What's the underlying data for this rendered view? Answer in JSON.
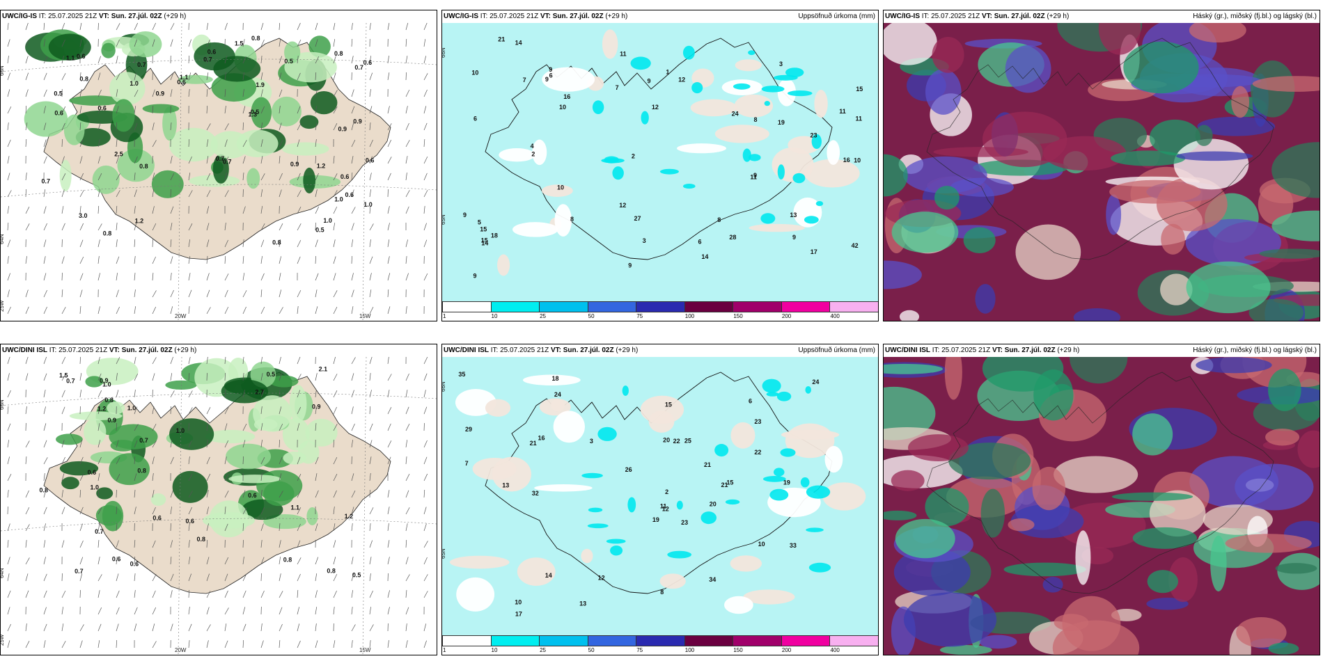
{
  "panels": [
    {
      "model": "UWC/IG-IS",
      "it": "IT: 25.07.2025 21Z",
      "vt_label": "VT:",
      "vt": "Sun. 27.júl. 02Z",
      "lead": "(+29 h)",
      "right": "",
      "type": "cloud"
    },
    {
      "model": "UWC/IG-IS",
      "it": "IT: 25.07.2025 21Z",
      "vt_label": "VT:",
      "vt": "Sun. 27.júl. 02Z",
      "lead": "(+29 h)",
      "right": "Uppsöfnuð úrkoma (mm)",
      "type": "precip"
    },
    {
      "model": "UWC/IG-IS",
      "it": "IT: 25.07.2025 21Z",
      "vt_label": "VT:",
      "vt": "Sun. 27.júl. 02Z",
      "lead": "(+29 h)",
      "right": "Háský (gr.), miðský (fj.bl.) og lágský (bl.)",
      "type": "layers"
    },
    {
      "model": "UWC/DINI ISL",
      "it": "IT: 25.07.2025 21Z",
      "vt_label": "VT:",
      "vt": "Sun. 27.júl. 02Z",
      "lead": "(+29 h)",
      "right": "",
      "type": "cloud"
    },
    {
      "model": "UWC/DINI ISL",
      "it": "IT: 25.07.2025 21Z",
      "vt_label": "VT:",
      "vt": "Sun. 27.júl. 02Z",
      "lead": "(+29 h)",
      "right": "Uppsöfnuð úrkoma (mm)",
      "type": "precip"
    },
    {
      "model": "UWC/DINI ISL",
      "it": "IT: 25.07.2025 21Z",
      "vt_label": "VT:",
      "vt": "Sun. 27.júl. 02Z",
      "lead": "(+29 h)",
      "right": "Háský (gr.), miðský (fj.bl.) og lágský (bl.)",
      "type": "layers"
    }
  ],
  "axis_labels": {
    "lat66": "66N",
    "lat64": "64N",
    "lat65": "65N",
    "lon20": "20W",
    "lon15": "15W",
    "lon25": "25W"
  },
  "colorbar": {
    "ticks": [
      "1",
      "10",
      "25",
      "50",
      "75",
      "100",
      "150",
      "200",
      "400"
    ],
    "colors": [
      "#ffffff",
      "#00eef0",
      "#00c0ee",
      "#3366e0",
      "#2a2ab0",
      "#6a0040",
      "#a0006a",
      "#f000a0",
      "#f8b0f0"
    ]
  },
  "cloud_labels": {
    "top": [
      "0.9",
      "0.7",
      "0.6",
      "2.5",
      "0.7",
      "0.5",
      "0.8",
      "1.0",
      "0.8",
      "0.7",
      "0.6",
      "1.1",
      "0.8",
      "1.0",
      "0.6",
      "1.2",
      "0.9",
      "0.5",
      "0.7",
      "1.5",
      "1.0",
      "0.6",
      "0.6",
      "0.8",
      "0.7",
      "0.5",
      "0.6",
      "1.1",
      "3.0",
      "1.3",
      "1.9",
      "1.0",
      "0.6",
      "0.6",
      "0.5",
      "0.8",
      "0.9",
      "0.7",
      "1.2",
      "0.8",
      "0.9",
      "0.6"
    ],
    "bottom": [
      "0.9",
      "1.0",
      "0.6",
      "2.7",
      "0.6",
      "0.7",
      "0.8",
      "1.0",
      "0.9",
      "0.8",
      "1.2",
      "0.6",
      "0.5",
      "0.8",
      "0.5",
      "0.8",
      "1.0",
      "1.1",
      "0.7",
      "2.1",
      "0.9",
      "0.7",
      "1.5",
      "0.6",
      "0.8",
      "0.6",
      "1.0",
      "1.2",
      "0.6",
      "0.7",
      "0.8"
    ]
  },
  "precip_labels": {
    "top": [
      "9",
      "10",
      "11",
      "7",
      "13",
      "9",
      "8",
      "9",
      "10",
      "12",
      "14",
      "9",
      "11",
      "12",
      "8",
      "6",
      "19",
      "21",
      "24",
      "23",
      "27",
      "42",
      "15",
      "15",
      "16",
      "28",
      "18",
      "17",
      "14",
      "15",
      "14",
      "12",
      "10",
      "11",
      "9",
      "10",
      "11",
      "7",
      "6",
      "9",
      "16",
      "9",
      "3",
      "2",
      "3",
      "9",
      "4",
      "5",
      "6",
      "8",
      "1",
      "2"
    ],
    "bottom": [
      "34",
      "19",
      "24",
      "23",
      "21",
      "12",
      "10",
      "21",
      "12",
      "6",
      "25",
      "23",
      "20",
      "24",
      "35",
      "32",
      "29",
      "19",
      "22",
      "18",
      "20",
      "21",
      "14",
      "26",
      "17",
      "13",
      "22",
      "15",
      "33",
      "16",
      "15",
      "13",
      "10",
      "7",
      "11",
      "8",
      "2",
      "3"
    ]
  }
}
